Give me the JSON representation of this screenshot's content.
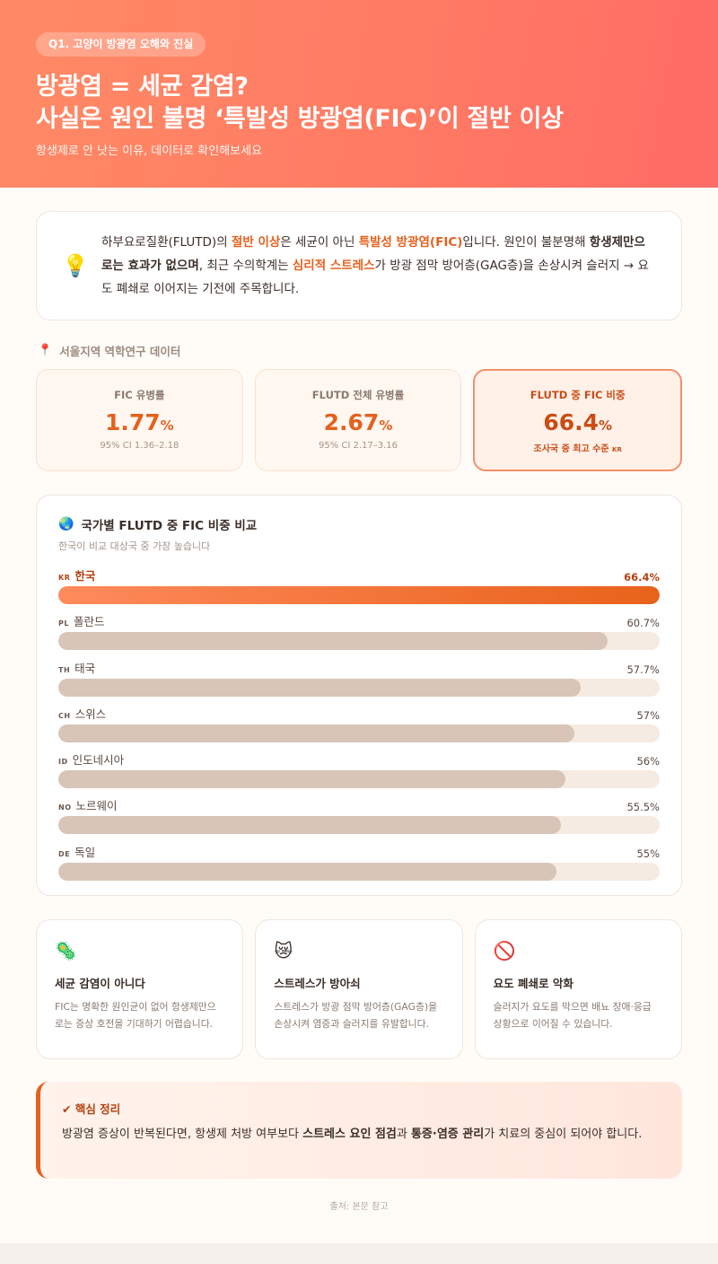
{
  "header": {
    "badge": "Q1. 고양이 방광염 오해와 진실",
    "title_line1": "방광염 = 세균 감염?",
    "title_line2": "사실은 원인 불명 ‘특발성 방광염(FIC)’이 절반 이상",
    "subtitle": "항생제로 안 낫는 이유, 데이터로 확인해보세요"
  },
  "intro": {
    "icon": "lightbulb-icon",
    "t1": "하부요로질환(FLUTD)의 ",
    "t2": "절반 이상",
    "t3": "은 세균이 아닌 ",
    "t4": "특발성 방광염(FIC)",
    "t5": "입니다. 원인이 불분명해 ",
    "t6": "항생제만으로는 효과가 없으며",
    "t7": ", 최근 수의학계는 ",
    "t8": "심리적 스트레스",
    "t9": "가 방광 점막 방어층(GAG층)을 손상시켜 슬러지 → 요도 폐쇄로 이어지는 기전에 주목합니다."
  },
  "data_section": {
    "label": "서울지역 역학연구 데이터",
    "icon": "pin-icon"
  },
  "stats": [
    {
      "label": "FIC 유병률",
      "value": "1.77",
      "unit": "%",
      "note": "95% CI 1.36–2.18"
    },
    {
      "label": "FLUTD 전체 유병률",
      "value": "2.67",
      "unit": "%",
      "note": "95% CI 2.17–3.16"
    },
    {
      "label": "FLUTD 중 FIC 비중",
      "value": "66.4",
      "unit": "%",
      "note": "조사국 중 최고 수준",
      "note_tag": "KR"
    }
  ],
  "chart": {
    "title": "국가별 FLUTD 중 FIC 비중 비교",
    "subtitle": "한국이 비교 대상국 중 가장 높습니다",
    "icon": "globe-icon"
  },
  "chart_data": {
    "type": "bar",
    "orientation": "horizontal",
    "title": "국가별 FLUTD 중 FIC 비중 비교",
    "categories": [
      "한국",
      "폴란드",
      "태국",
      "스위스",
      "인도네시아",
      "노르웨이",
      "독일"
    ],
    "country_codes": [
      "KR",
      "PL",
      "TH",
      "CH",
      "ID",
      "NO",
      "DE"
    ],
    "values": [
      66.4,
      60.7,
      57.7,
      57,
      56,
      55.5,
      55
    ],
    "value_labels": [
      "66.4%",
      "60.7%",
      "57.7%",
      "57%",
      "56%",
      "55.5%",
      "55%"
    ],
    "xlim": [
      0,
      66.4
    ],
    "highlight": "한국",
    "colors": {
      "highlight": "#e8621a",
      "default": "#d8c5b8",
      "track": "#f5ebe2"
    }
  },
  "features": [
    {
      "icon": "virus-icon",
      "title": "세균 감염이 아니다",
      "text": "FIC는 명확한 원인균이 없어 항생제만으로는 증상 호전을 기대하기 어렵습니다."
    },
    {
      "icon": "stressed-cat-icon",
      "title": "스트레스가 방아쇠",
      "text": "스트레스가 방광 점막 방어층(GAG층)을 손상시켜 염증과 슬러지를 유발합니다."
    },
    {
      "icon": "prohibited-icon",
      "title": "요도 폐쇄로 악화",
      "text": "슬러지가 요도를 막으면 배뇨 장애·응급 상황으로 이어질 수 있습니다."
    }
  ],
  "summary": {
    "title": "✔ 핵심 정리",
    "t1": "방광염 증상이 반복된다면, 항생제 처방 여부보다 ",
    "t2": "스트레스 요인 점검",
    "t3": "과 ",
    "t4": "통증·염증 관리",
    "t5": "가 치료의 중심이 되어야 합니다."
  },
  "footer": {
    "source": "출처: 본문 참고"
  },
  "colors": {
    "accent": "#e4611e",
    "hero_start": "#ff8a65",
    "hero_end": "#ff6b66"
  }
}
